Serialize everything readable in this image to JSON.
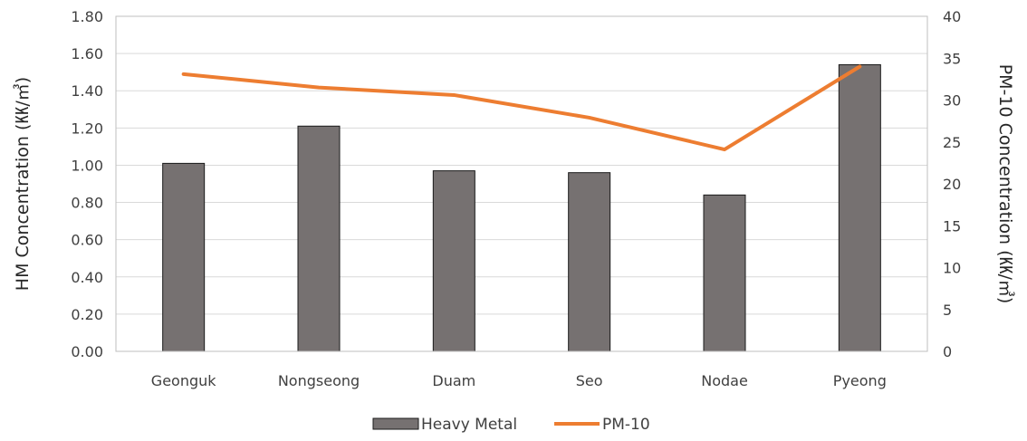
{
  "chart_data": {
    "type": "bar-line-combo",
    "categories": [
      "Geonguk",
      "Nongseong",
      "Duam",
      "Seo",
      "Nodae",
      "Pyeong"
    ],
    "series": [
      {
        "name": "Heavy Metal",
        "type": "bar",
        "axis": "left",
        "color": "#767171",
        "values": [
          1.01,
          1.21,
          0.97,
          0.96,
          0.84,
          1.54
        ]
      },
      {
        "name": "PM-10",
        "type": "line",
        "axis": "right",
        "color": "#ED7D31",
        "values": [
          33.1,
          31.5,
          30.6,
          27.9,
          24.1,
          34.0
        ]
      }
    ],
    "ylabel": "HM Concentration (㏍/㎥)",
    "y2label": "PM-10 Concentration (㏍/㎥)",
    "ylim": [
      0,
      1.8
    ],
    "y2lim": [
      0,
      40
    ],
    "y_ticks": [
      "0.00",
      "0.20",
      "0.40",
      "0.60",
      "0.80",
      "1.00",
      "1.20",
      "1.40",
      "1.60",
      "1.80"
    ],
    "y2_ticks": [
      "0",
      "5",
      "10",
      "15",
      "20",
      "25",
      "30",
      "35",
      "40"
    ],
    "grid": true,
    "legend_position": "bottom"
  }
}
